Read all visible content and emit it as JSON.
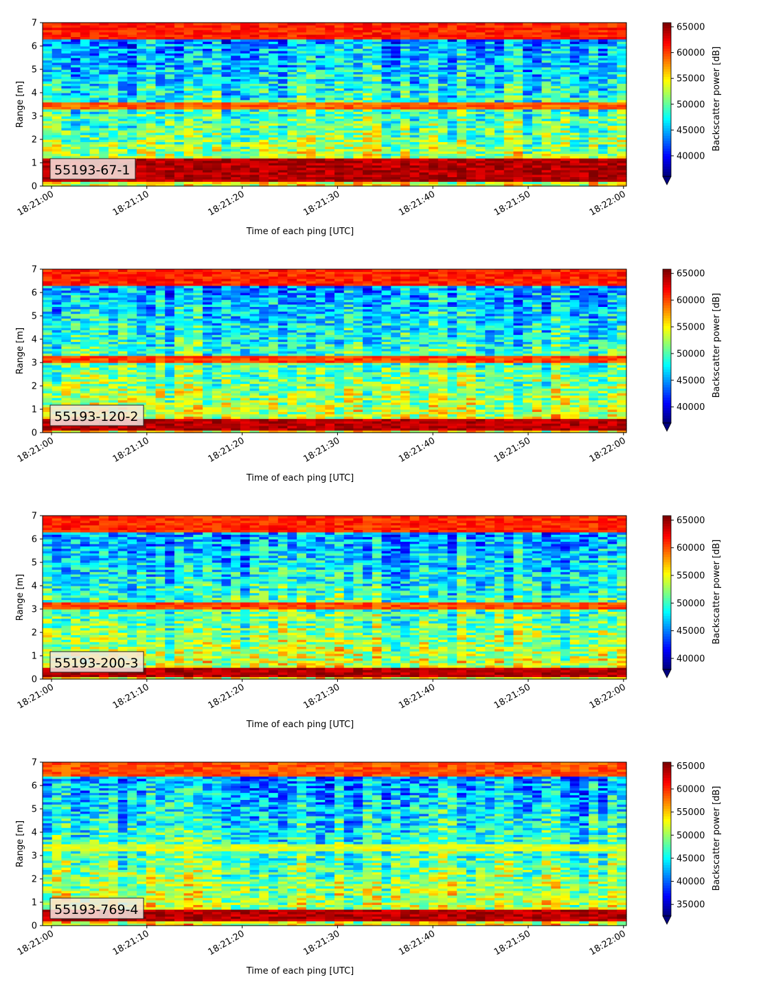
{
  "chart_data": [
    {
      "type": "heatmap",
      "label": "55193-67-1",
      "xlabel": "Time of each ping [UTC]",
      "ylabel": "Range [m]",
      "colorbar_label": "Backscatter power [dB]",
      "x_ticks": [
        "18:21:00",
        "18:21:10",
        "18:21:20",
        "18:21:30",
        "18:21:40",
        "18:21:50",
        "18:22:00"
      ],
      "x_range_seconds": [
        0,
        60
      ],
      "ylim": [
        0,
        7
      ],
      "y_ticks": [
        0,
        1,
        2,
        3,
        4,
        5,
        6,
        7
      ],
      "colorbar_ticks": [
        40000,
        45000,
        50000,
        55000,
        60000,
        65000
      ],
      "vmin": 36000,
      "vmax": 65800,
      "colormap": "jet",
      "features": [
        {
          "range": [
            0.25,
            1.15
          ],
          "value": 66000
        },
        {
          "range": [
            3.3,
            3.65
          ],
          "value": 61000
        },
        {
          "range": [
            6.3,
            7.0
          ],
          "value": 63000
        }
      ]
    },
    {
      "type": "heatmap",
      "label": "55193-120-2",
      "xlabel": "Time of each ping [UTC]",
      "ylabel": "Range [m]",
      "colorbar_label": "Backscatter power [dB]",
      "x_ticks": [
        "18:21:00",
        "18:21:10",
        "18:21:20",
        "18:21:30",
        "18:21:40",
        "18:21:50",
        "18:22:00"
      ],
      "x_range_seconds": [
        0,
        60
      ],
      "ylim": [
        0,
        7
      ],
      "y_ticks": [
        0,
        1,
        2,
        3,
        4,
        5,
        6,
        7
      ],
      "colorbar_ticks": [
        40000,
        45000,
        50000,
        55000,
        60000,
        65000
      ],
      "vmin": 37000,
      "vmax": 65800,
      "colormap": "jet",
      "features": [
        {
          "range": [
            0.1,
            0.6
          ],
          "value": 66000
        },
        {
          "range": [
            3.0,
            3.25
          ],
          "value": 62000
        },
        {
          "range": [
            6.3,
            7.0
          ],
          "value": 63000
        }
      ]
    },
    {
      "type": "heatmap",
      "label": "55193-200-3",
      "xlabel": "Time of each ping [UTC]",
      "ylabel": "Range [m]",
      "colorbar_label": "Backscatter power [dB]",
      "x_ticks": [
        "18:21:00",
        "18:21:10",
        "18:21:20",
        "18:21:30",
        "18:21:40",
        "18:21:50",
        "18:22:00"
      ],
      "x_range_seconds": [
        0,
        60
      ],
      "ylim": [
        0,
        7
      ],
      "y_ticks": [
        0,
        1,
        2,
        3,
        4,
        5,
        6,
        7
      ],
      "colorbar_ticks": [
        40000,
        45000,
        50000,
        55000,
        60000,
        65000
      ],
      "vmin": 38000,
      "vmax": 65800,
      "colormap": "jet",
      "features": [
        {
          "range": [
            0.1,
            0.45
          ],
          "value": 66000
        },
        {
          "range": [
            3.0,
            3.25
          ],
          "value": 62000
        },
        {
          "range": [
            6.3,
            7.0
          ],
          "value": 63000
        }
      ]
    },
    {
      "type": "heatmap",
      "label": "55193-769-4",
      "xlabel": "Time of each ping [UTC]",
      "ylabel": "Range [m]",
      "colorbar_label": "Backscatter power [dB]",
      "x_ticks": [
        "18:21:00",
        "18:21:10",
        "18:21:20",
        "18:21:30",
        "18:21:40",
        "18:21:50",
        "18:22:00"
      ],
      "x_range_seconds": [
        0,
        60
      ],
      "ylim": [
        0,
        7
      ],
      "y_ticks": [
        0,
        1,
        2,
        3,
        4,
        5,
        6,
        7
      ],
      "colorbar_ticks": [
        35000,
        40000,
        45000,
        50000,
        55000,
        60000,
        65000
      ],
      "vmin": 32500,
      "vmax": 65800,
      "colormap": "jet",
      "features": [
        {
          "range": [
            0.25,
            0.65
          ],
          "value": 66000
        },
        {
          "range": [
            3.2,
            3.5
          ],
          "value": 54000
        },
        {
          "range": [
            6.4,
            7.0
          ],
          "value": 61000
        }
      ]
    }
  ]
}
